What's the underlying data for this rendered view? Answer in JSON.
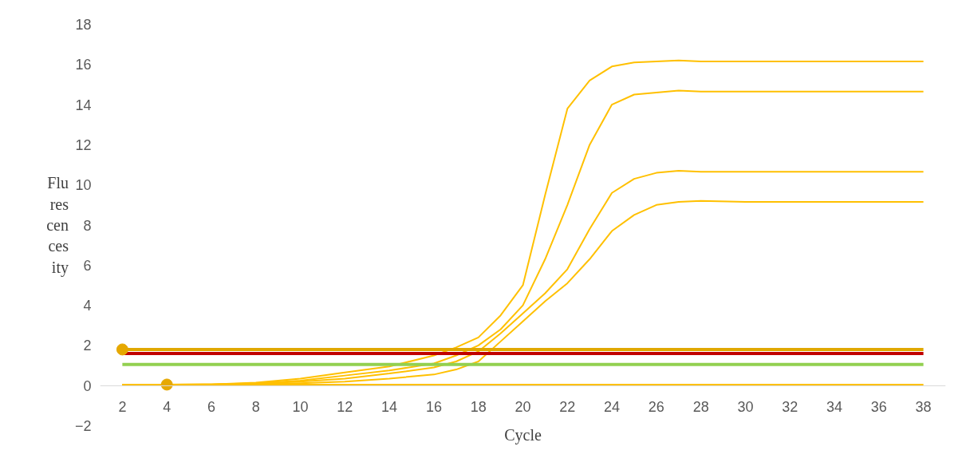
{
  "chart_data": {
    "type": "line",
    "xlabel": "Cycle",
    "ylabel": "Flurescencesity",
    "x": [
      2,
      4,
      6,
      8,
      10,
      12,
      14,
      16,
      17,
      18,
      19,
      20,
      21,
      22,
      23,
      24,
      25,
      26,
      27,
      28,
      30,
      32,
      34,
      36,
      38
    ],
    "series": [
      {
        "color": "#ffc000",
        "values": [
          0.05,
          0.05,
          0.06,
          0.15,
          0.35,
          0.65,
          0.95,
          1.5,
          1.9,
          2.4,
          3.5,
          5.0,
          9.5,
          13.8,
          15.2,
          15.9,
          16.1,
          16.15,
          16.2,
          16.15,
          16.15,
          16.15,
          16.15,
          16.15,
          16.15
        ]
      },
      {
        "color": "#ffc000",
        "values": [
          0.05,
          0.05,
          0.06,
          0.12,
          0.25,
          0.5,
          0.75,
          1.1,
          1.5,
          2.0,
          2.8,
          4.0,
          6.3,
          9.0,
          12.0,
          14.0,
          14.5,
          14.6,
          14.7,
          14.65,
          14.65,
          14.65,
          14.65,
          14.65,
          14.65
        ]
      },
      {
        "color": "#ffc000",
        "values": [
          0.05,
          0.05,
          0.06,
          0.1,
          0.2,
          0.35,
          0.6,
          0.9,
          1.2,
          1.7,
          2.6,
          3.6,
          4.6,
          5.8,
          7.8,
          9.6,
          10.3,
          10.6,
          10.7,
          10.65,
          10.65,
          10.65,
          10.65,
          10.65,
          10.65
        ]
      },
      {
        "color": "#ffc000",
        "values": [
          0.05,
          0.05,
          0.05,
          0.08,
          0.12,
          0.2,
          0.35,
          0.55,
          0.8,
          1.2,
          2.2,
          3.2,
          4.2,
          5.1,
          6.3,
          7.7,
          8.5,
          9.0,
          9.15,
          9.2,
          9.15,
          9.15,
          9.15,
          9.15,
          9.15
        ]
      },
      {
        "color": "#ffc000",
        "x": [
          2,
          38
        ],
        "values": [
          0.05,
          0.05
        ]
      },
      {
        "color": "#92d050",
        "x": [
          2,
          38
        ],
        "values": [
          1.05,
          1.05
        ]
      },
      {
        "color": "#c00000",
        "x": [
          2,
          38
        ],
        "values": [
          1.6,
          1.6
        ]
      },
      {
        "color": "#e0a800",
        "x": [
          2,
          38
        ],
        "values": [
          1.8,
          1.8
        ]
      },
      {
        "type": "scatter",
        "marker": "circle",
        "color": "#e6a800",
        "x": [
          2,
          4
        ],
        "values": [
          1.8,
          0.05
        ]
      }
    ],
    "xlim": [
      1,
      39
    ],
    "xticks": [
      2,
      4,
      6,
      8,
      10,
      12,
      14,
      16,
      18,
      20,
      22,
      24,
      26,
      28,
      30,
      32,
      34,
      36,
      38
    ],
    "ylim": [
      -2,
      18
    ],
    "yticks": [
      -2,
      0,
      2,
      4,
      6,
      8,
      10,
      12,
      14,
      16,
      18
    ],
    "grid": false,
    "line_style": "solid"
  }
}
